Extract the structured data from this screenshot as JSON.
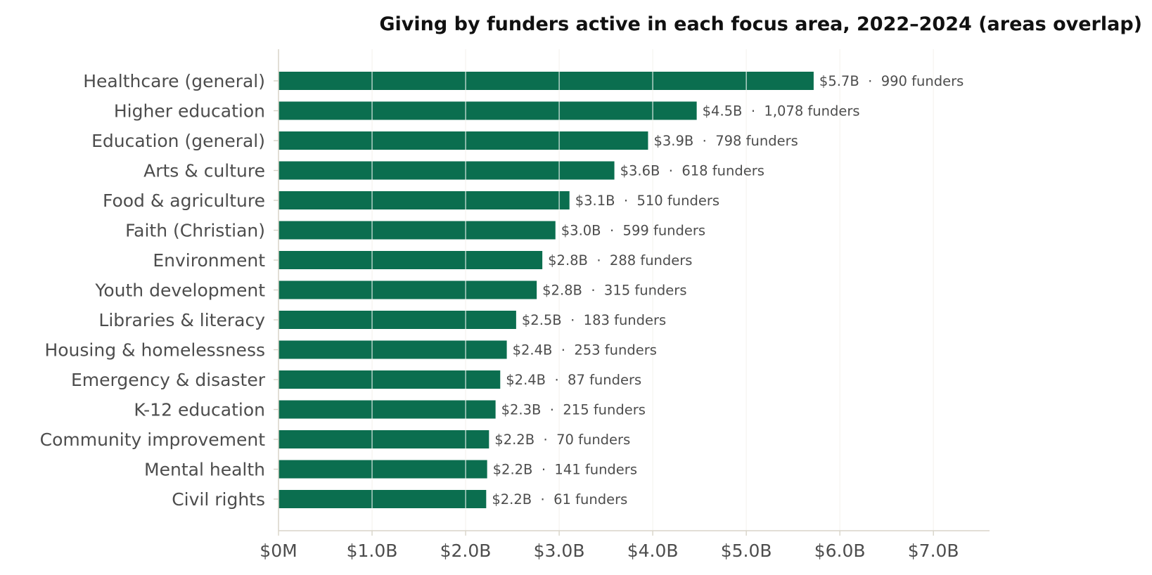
{
  "chart_data": {
    "type": "bar",
    "orientation": "horizontal",
    "title": "Giving by funders active in each focus area, 2022–2024 (areas overlap)",
    "xlabel": "",
    "ylabel": "",
    "xlim": [
      0,
      7.6
    ],
    "x_ticks": [
      0,
      1,
      2,
      3,
      4,
      5,
      6,
      7
    ],
    "x_tick_labels": [
      "$0M",
      "$1.0B",
      "$2.0B",
      "$3.0B",
      "$4.0B",
      "$5.0B",
      "$6.0B",
      "$7.0B"
    ],
    "grid": "vertical",
    "legend": "none",
    "colors": {
      "bar": "#0b6e4f",
      "grid": "#e6e2d6",
      "axis": "#d8d4c8",
      "text": "#4d4d4d",
      "title": "#111111"
    },
    "categories": [
      "Healthcare (general)",
      "Higher education",
      "Education (general)",
      "Arts & culture",
      "Food & agriculture",
      "Faith (Christian)",
      "Environment",
      "Youth development",
      "Libraries & literacy",
      "Housing & homelessness",
      "Emergency & disaster",
      "K-12 education",
      "Community improvement",
      "Mental health",
      "Civil rights"
    ],
    "values": [
      5.72,
      4.47,
      3.95,
      3.59,
      3.11,
      2.96,
      2.82,
      2.76,
      2.54,
      2.44,
      2.37,
      2.32,
      2.25,
      2.23,
      2.22
    ],
    "data_labels": [
      "$5.7B  ·  990 funders",
      "$4.5B  ·  1,078 funders",
      "$3.9B  ·  798 funders",
      "$3.6B  ·  618 funders",
      "$3.1B  ·  510 funders",
      "$3.0B  ·  599 funders",
      "$2.8B  ·  288 funders",
      "$2.8B  ·  315 funders",
      "$2.5B  ·  183 funders",
      "$2.4B  ·  253 funders",
      "$2.4B  ·  87 funders",
      "$2.3B  ·  215 funders",
      "$2.2B  ·  70 funders",
      "$2.2B  ·  141 funders",
      "$2.2B  ·  61 funders"
    ]
  }
}
